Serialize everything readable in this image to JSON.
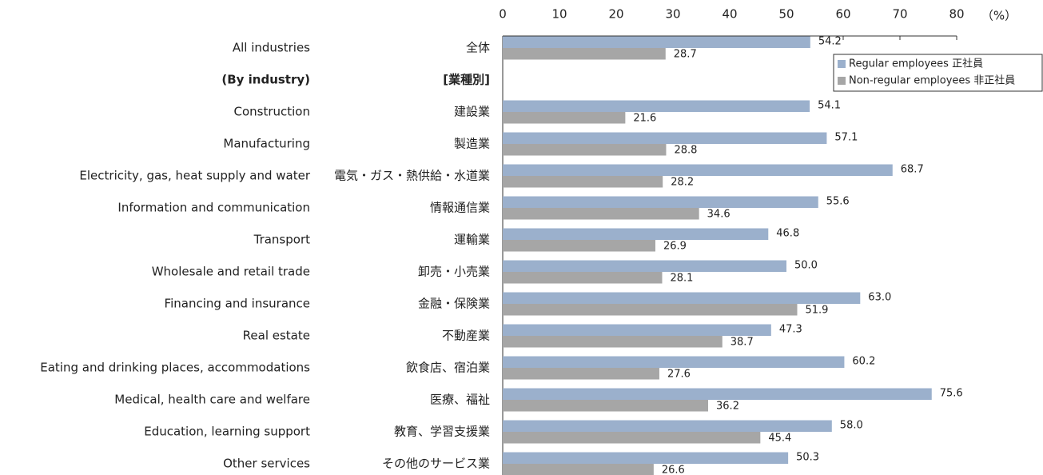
{
  "chart_data": {
    "type": "bar",
    "orientation": "horizontal",
    "categories": [
      "All industries",
      "(By industry)",
      "Construction",
      "Manufacturing",
      "Electricity, gas, heat supply and water",
      "Information and communication",
      "Transport",
      "Wholesale and retail trade",
      "Financing and insurance",
      "Real estate",
      "Eating and drinking places, accommodations",
      "Medical, health care and welfare",
      "Education, learning support",
      "Other services"
    ],
    "categories_ja": [
      "全体",
      "[業種別]",
      "建設業",
      "製造業",
      "電気・ガス・熱供給・水道業",
      "情報通信業",
      "運輸業",
      "卸売・小売業",
      "金融・保険業",
      "不動産業",
      "飲食店、宿泊業",
      "医療、福祉",
      "教育、学習支援業",
      "その他のサービス業"
    ],
    "series": [
      {
        "name": "Regular employees 正社員",
        "color": "#9bb0cc",
        "values": [
          54.2,
          null,
          54.1,
          57.1,
          68.7,
          55.6,
          46.8,
          50.0,
          63.0,
          47.3,
          60.2,
          75.6,
          58.0,
          50.3
        ],
        "value_labels": [
          "54.2",
          null,
          "54.1",
          "57.1",
          "68.7",
          "55.6",
          "46.8",
          "50.0",
          "63.0",
          "47.3",
          "60.2",
          "75.6",
          "58.0",
          "50.3"
        ]
      },
      {
        "name": "Non-regular employees 非正社員",
        "color": "#a6a6a6",
        "values": [
          28.7,
          null,
          21.6,
          28.8,
          28.2,
          34.6,
          26.9,
          28.1,
          51.9,
          38.7,
          27.6,
          36.2,
          45.4,
          26.6
        ],
        "value_labels": [
          "28.7",
          null,
          "21.6",
          "28.8",
          "28.2",
          "34.6",
          "26.9",
          "28.1",
          "51.9",
          "38.7",
          "27.6",
          "36.2",
          "45.4",
          "26.6"
        ]
      }
    ],
    "x_unit": "（%）",
    "xlim": [
      0,
      80
    ],
    "xticks": [
      0,
      10,
      20,
      30,
      40,
      50,
      60,
      70,
      80
    ],
    "legend": "upper right"
  }
}
